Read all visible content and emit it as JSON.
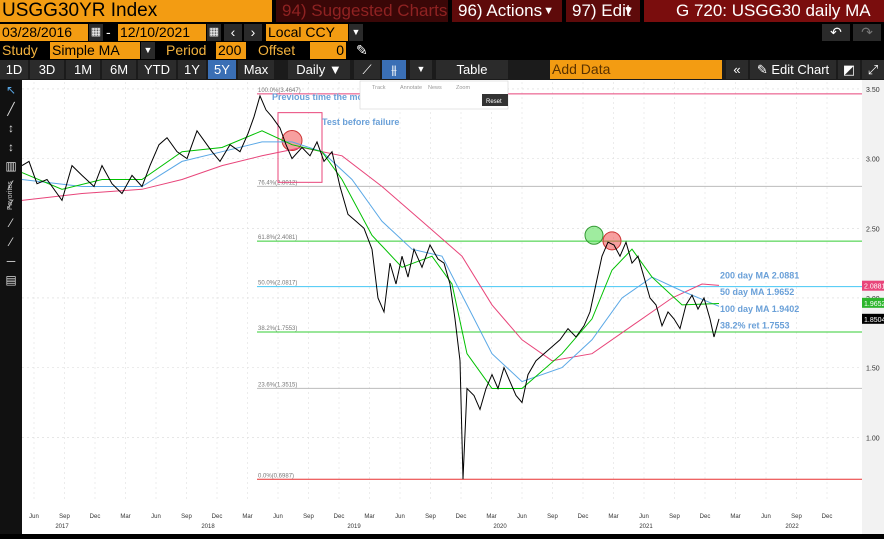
{
  "header": {
    "ticker": "USGG30YR Index",
    "suggested": "94) Suggested Charts",
    "actions": "96) Actions",
    "edit": "97) Edit",
    "title": "G 720: USGG30 daily MA",
    "start_date": "03/28/2016",
    "end_date": "12/10/2021",
    "date_sep": "-",
    "currency": "Local CCY",
    "study_label": "Study",
    "study_value": "Simple MA",
    "period_label": "Period",
    "period_value": "200",
    "offset_label": "Offset",
    "offset_value": "0"
  },
  "toolbar": {
    "ranges": [
      "1D",
      "3D",
      "1M",
      "6M",
      "YTD",
      "1Y",
      "5Y",
      "Max"
    ],
    "selected_range": "5Y",
    "interval": "Daily",
    "table_label": "Table",
    "add_data_label": "Add Data",
    "edit_chart_label": "Edit Chart"
  },
  "sidebar_label": "Favorites",
  "zoom_buttons": [
    "Track",
    "Annotate",
    "News",
    "Zoom"
  ],
  "reset_label": "Reset",
  "colors": {
    "price": "#000000",
    "ma50": "#00c000",
    "ma100": "#5aa8e6",
    "ma200": "#e8457a",
    "fib": "#d0d0d0",
    "accent": "#f39c12"
  },
  "chart_data": {
    "type": "line",
    "title": "",
    "ylim": [
      0.55,
      3.55
    ],
    "yticks": [
      "3.50",
      "3.00",
      "2.50",
      "2.00",
      "1.50",
      "1.00"
    ],
    "month_ticks": [
      "Jun",
      "Sep",
      "Dec",
      "Mar",
      "Jun",
      "Sep",
      "Dec",
      "Mar",
      "Jun",
      "Sep",
      "Dec",
      "Mar",
      "Jun",
      "Sep",
      "Dec",
      "Mar",
      "Jun",
      "Sep",
      "Dec",
      "Mar",
      "Jun",
      "Sep",
      "Dec",
      "Mar",
      "Jun",
      "Sep",
      "Dec"
    ],
    "year_labels": [
      "2017",
      "2018",
      "2019",
      "2020",
      "2021",
      "2022"
    ],
    "price_pts": [
      [
        0,
        2.95
      ],
      [
        7,
        2.98
      ],
      [
        15,
        2.82
      ],
      [
        25,
        2.85
      ],
      [
        40,
        2.7
      ],
      [
        50,
        2.95
      ],
      [
        60,
        2.88
      ],
      [
        72,
        2.8
      ],
      [
        80,
        2.95
      ],
      [
        90,
        2.82
      ],
      [
        100,
        2.75
      ],
      [
        110,
        2.88
      ],
      [
        120,
        2.8
      ],
      [
        128,
        2.95
      ],
      [
        137,
        3.1
      ],
      [
        145,
        3.15
      ],
      [
        155,
        3.05
      ],
      [
        165,
        3.0
      ],
      [
        175,
        3.2
      ],
      [
        183,
        3.12
      ],
      [
        190,
        3.05
      ],
      [
        198,
        2.98
      ],
      [
        208,
        3.1
      ],
      [
        218,
        3.05
      ],
      [
        226,
        3.18
      ],
      [
        232,
        3.3
      ],
      [
        238,
        3.45
      ],
      [
        244,
        3.35
      ],
      [
        250,
        3.3
      ],
      [
        258,
        3.22
      ],
      [
        264,
        3.1
      ],
      [
        270,
        3.0
      ],
      [
        280,
        3.08
      ],
      [
        288,
        3.02
      ],
      [
        295,
        3.12
      ],
      [
        302,
        2.98
      ],
      [
        310,
        3.05
      ],
      [
        318,
        2.8
      ],
      [
        326,
        2.6
      ],
      [
        334,
        2.55
      ],
      [
        342,
        2.5
      ],
      [
        350,
        2.35
      ],
      [
        356,
        2.0
      ],
      [
        362,
        1.9
      ],
      [
        368,
        2.25
      ],
      [
        374,
        2.1
      ],
      [
        380,
        2.3
      ],
      [
        386,
        2.15
      ],
      [
        392,
        2.35
      ],
      [
        400,
        2.22
      ],
      [
        408,
        2.38
      ],
      [
        416,
        2.28
      ],
      [
        422,
        2.25
      ],
      [
        428,
        2.1
      ],
      [
        433,
        1.85
      ],
      [
        438,
        1.55
      ],
      [
        441,
        0.7
      ],
      [
        445,
        1.35
      ],
      [
        452,
        1.3
      ],
      [
        458,
        1.2
      ],
      [
        464,
        1.35
      ],
      [
        470,
        1.45
      ],
      [
        476,
        1.35
      ],
      [
        482,
        1.5
      ],
      [
        488,
        1.4
      ],
      [
        494,
        1.3
      ],
      [
        500,
        1.25
      ],
      [
        506,
        1.45
      ],
      [
        514,
        1.55
      ],
      [
        522,
        1.6
      ],
      [
        530,
        1.65
      ],
      [
        538,
        1.7
      ],
      [
        546,
        1.78
      ],
      [
        554,
        1.72
      ],
      [
        562,
        1.8
      ],
      [
        568,
        1.9
      ],
      [
        574,
        2.1
      ],
      [
        580,
        2.3
      ],
      [
        586,
        2.4
      ],
      [
        592,
        2.38
      ],
      [
        598,
        2.3
      ],
      [
        604,
        2.4
      ],
      [
        610,
        2.25
      ],
      [
        616,
        2.3
      ],
      [
        622,
        2.15
      ],
      [
        628,
        2.0
      ],
      [
        634,
        1.95
      ],
      [
        640,
        1.8
      ],
      [
        646,
        1.9
      ],
      [
        652,
        1.85
      ],
      [
        658,
        1.78
      ],
      [
        664,
        1.95
      ],
      [
        670,
        2.02
      ],
      [
        676,
        1.92
      ],
      [
        682,
        2.0
      ],
      [
        688,
        1.85
      ],
      [
        692,
        1.72
      ],
      [
        697,
        1.85
      ]
    ],
    "ma50_pts": [
      [
        0,
        2.9
      ],
      [
        40,
        2.78
      ],
      [
        80,
        2.85
      ],
      [
        120,
        2.85
      ],
      [
        160,
        3.05
      ],
      [
        200,
        3.08
      ],
      [
        240,
        3.2
      ],
      [
        270,
        3.1
      ],
      [
        300,
        3.05
      ],
      [
        320,
        2.85
      ],
      [
        350,
        2.45
      ],
      [
        380,
        2.22
      ],
      [
        410,
        2.3
      ],
      [
        430,
        2.1
      ],
      [
        445,
        1.6
      ],
      [
        470,
        1.35
      ],
      [
        500,
        1.35
      ],
      [
        540,
        1.6
      ],
      [
        570,
        1.85
      ],
      [
        590,
        2.2
      ],
      [
        610,
        2.35
      ],
      [
        630,
        2.15
      ],
      [
        660,
        1.95
      ],
      [
        697,
        1.96
      ]
    ],
    "ma100_pts": [
      [
        0,
        2.85
      ],
      [
        60,
        2.8
      ],
      [
        120,
        2.8
      ],
      [
        160,
        2.98
      ],
      [
        200,
        3.05
      ],
      [
        240,
        3.12
      ],
      [
        270,
        3.12
      ],
      [
        300,
        3.05
      ],
      [
        330,
        2.85
      ],
      [
        360,
        2.55
      ],
      [
        390,
        2.35
      ],
      [
        420,
        2.3
      ],
      [
        445,
        1.95
      ],
      [
        470,
        1.6
      ],
      [
        500,
        1.4
      ],
      [
        540,
        1.5
      ],
      [
        570,
        1.7
      ],
      [
        600,
        2.0
      ],
      [
        630,
        2.15
      ],
      [
        660,
        2.05
      ],
      [
        697,
        1.94
      ]
    ],
    "ma200_pts": [
      [
        0,
        2.7
      ],
      [
        60,
        2.75
      ],
      [
        120,
        2.78
      ],
      [
        160,
        2.85
      ],
      [
        200,
        2.95
      ],
      [
        240,
        3.02
      ],
      [
        280,
        3.08
      ],
      [
        320,
        3.02
      ],
      [
        360,
        2.8
      ],
      [
        400,
        2.55
      ],
      [
        440,
        2.3
      ],
      [
        470,
        1.95
      ],
      [
        500,
        1.7
      ],
      [
        530,
        1.55
      ],
      [
        570,
        1.6
      ],
      [
        610,
        1.8
      ],
      [
        650,
        2.0
      ],
      [
        680,
        2.1
      ],
      [
        697,
        2.09
      ]
    ],
    "fib_levels": [
      {
        "value": 3.4647,
        "label": "100.0%(3.4647)"
      },
      {
        "value": 2.8012,
        "label": "76.4%(2.8012)"
      },
      {
        "value": 2.4081,
        "label": "61.8%(2.4081)"
      },
      {
        "value": 2.0817,
        "label": "50.0%(2.0817)"
      },
      {
        "value": 1.7553,
        "label": "38.2%(1.7553)"
      },
      {
        "value": 1.3515,
        "label": "23.6%(1.3515)"
      },
      {
        "value": 0.6987,
        "label": "0.0%(0.6987)"
      }
    ],
    "annotations": [
      "Previous time the moving averages crossed!",
      "Test before failure",
      "200 day MA 2.0881",
      "50 day MA 1.9652",
      "100 day MA 1.9402",
      "38.2% ret 1.7553"
    ],
    "price_labels": [
      "2.0881",
      "1.9652",
      "1.8504"
    ]
  }
}
